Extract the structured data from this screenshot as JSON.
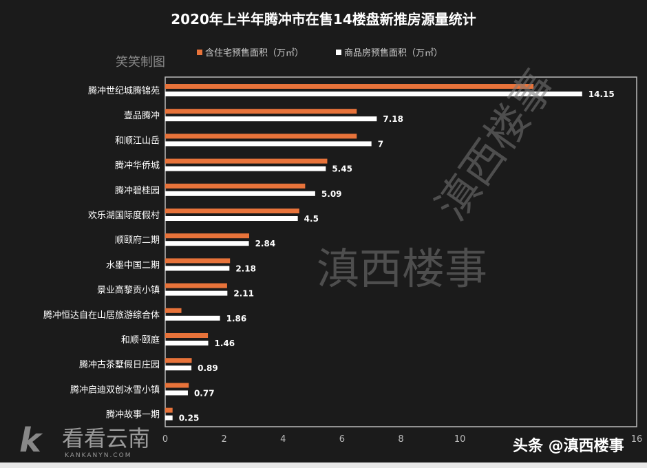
{
  "chart_data": {
    "type": "bar",
    "orientation": "horizontal",
    "title": "2020年上半年腾冲市在售14楼盘新推房源量统计",
    "credit": "笑笑制图",
    "categories": [
      "腾冲世纪城腾锦苑",
      "壹品腾冲",
      "和顺江山岳",
      "腾冲华侨城",
      "腾冲碧桂园",
      "欢乐湖国际度假村",
      "顺颐府二期",
      "水墨中国二期",
      "景业高黎贡小镇",
      "腾冲恒达自在山居旅游综合体",
      "和顺·颐庭",
      "腾冲古茶墅假日庄园",
      "腾冲启迪双创冰雪小镇",
      "腾冲故事一期"
    ],
    "series": [
      {
        "name": "含住宅预售面积（万㎡）",
        "color": "#e8733a",
        "values": [
          12.5,
          6.5,
          6.5,
          5.5,
          4.75,
          4.55,
          2.85,
          2.2,
          2.1,
          0.55,
          1.45,
          0.9,
          0.8,
          0.25
        ]
      },
      {
        "name": "商品房预售面积（万㎡）",
        "color": "#ffffff",
        "values": [
          14.15,
          7.18,
          7,
          5.45,
          5.09,
          4.5,
          2.84,
          2.18,
          2.11,
          1.86,
          1.46,
          0.89,
          0.77,
          0.25
        ],
        "data_labels": [
          "14.15",
          "7.18",
          "7",
          "5.45",
          "5.09",
          "4.5",
          "2.84",
          "2.18",
          "2.11",
          "1.86",
          "1.46",
          "0.89",
          "0.77",
          "0.25"
        ]
      }
    ],
    "xlim": [
      0,
      16
    ],
    "xticks": [
      "0",
      "2",
      "4",
      "6",
      "8",
      "10",
      "16"
    ],
    "grid": false,
    "legend": "top"
  },
  "watermarks": {
    "diagonal": "滇西楼事",
    "center": "滇西楼事",
    "logo_cn": "看看云南",
    "logo_en": "KANKANYN.COM",
    "source": "头条 @滇西楼事"
  }
}
